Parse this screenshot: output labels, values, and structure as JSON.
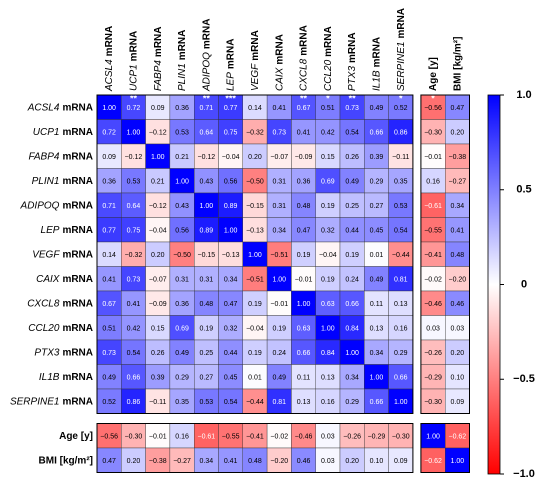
{
  "chart_data": {
    "type": "heatmap",
    "genes": [
      "ACSL4",
      "UCP1",
      "FABP4",
      "PLIN1",
      "ADIPOQ",
      "LEP",
      "VEGF",
      "CAIX",
      "CXCL8",
      "CCL20",
      "PTX3",
      "IL1B",
      "SERPINE1"
    ],
    "suffix": "mRNA",
    "extra_labels": [
      "Age [y]",
      "BMI [kg/m²]"
    ],
    "z": [
      [
        1,
        0.72,
        0.09,
        0.36,
        0.71,
        0.77,
        0.14,
        0.41,
        0.67,
        0.51,
        0.73,
        0.49,
        0.52,
        -0.56,
        0.47
      ],
      [
        0.72,
        1,
        -0.12,
        0.53,
        0.64,
        0.75,
        -0.32,
        0.73,
        0.41,
        0.42,
        0.54,
        0.66,
        0.86,
        -0.3,
        0.2
      ],
      [
        0.09,
        -0.12,
        1,
        0.21,
        -0.12,
        -0.04,
        0.2,
        -0.07,
        -0.09,
        0.15,
        0.26,
        0.39,
        -0.11,
        -0.01,
        -0.38
      ],
      [
        0.36,
        0.53,
        0.21,
        1,
        0.43,
        0.56,
        -0.5,
        0.31,
        0.36,
        0.69,
        0.49,
        0.29,
        0.35,
        0.16,
        -0.27
      ],
      [
        0.71,
        0.64,
        -0.12,
        0.43,
        1,
        0.89,
        -0.15,
        0.31,
        0.48,
        0.19,
        0.25,
        0.27,
        0.53,
        -0.61,
        0.34
      ],
      [
        0.77,
        0.75,
        -0.04,
        0.56,
        0.89,
        1,
        -0.13,
        0.34,
        0.47,
        0.32,
        0.44,
        0.45,
        0.54,
        -0.55,
        0.41
      ],
      [
        0.14,
        -0.32,
        0.2,
        -0.5,
        -0.15,
        -0.13,
        1,
        -0.51,
        0.19,
        -0.04,
        0.19,
        0.01,
        -0.44,
        -0.41,
        0.48
      ],
      [
        0.41,
        0.73,
        -0.07,
        0.31,
        0.31,
        0.34,
        -0.51,
        1,
        -0.01,
        0.19,
        0.24,
        0.49,
        0.81,
        -0.02,
        -0.2
      ],
      [
        0.67,
        0.41,
        -0.09,
        0.36,
        0.48,
        0.47,
        0.19,
        -0.01,
        1,
        0.63,
        0.66,
        0.11,
        0.13,
        -0.46,
        0.46
      ],
      [
        0.51,
        0.42,
        0.15,
        0.69,
        0.19,
        0.32,
        -0.04,
        0.19,
        0.63,
        1,
        0.84,
        0.13,
        0.16,
        0.03,
        0.03
      ],
      [
        0.73,
        0.54,
        0.26,
        0.49,
        0.25,
        0.44,
        0.19,
        0.24,
        0.66,
        0.84,
        1,
        0.34,
        0.29,
        -0.26,
        0.2
      ],
      [
        0.49,
        0.66,
        0.39,
        0.29,
        0.27,
        0.45,
        0.01,
        0.49,
        0.11,
        0.13,
        0.34,
        1,
        0.66,
        -0.29,
        0.1
      ],
      [
        0.52,
        0.86,
        -0.11,
        0.35,
        0.53,
        0.54,
        -0.44,
        0.81,
        0.13,
        0.16,
        0.29,
        0.66,
        1,
        -0.3,
        0.09
      ],
      [
        -0.56,
        -0.3,
        -0.01,
        0.16,
        -0.61,
        -0.55,
        -0.41,
        -0.02,
        -0.46,
        0.03,
        -0.26,
        -0.29,
        -0.3,
        1,
        -0.62
      ],
      [
        0.47,
        0.2,
        -0.38,
        -0.27,
        0.34,
        0.41,
        0.48,
        -0.2,
        0.46,
        0.03,
        0.2,
        0.1,
        0.09,
        -0.62,
        1
      ]
    ],
    "value_labels": [
      [
        "1.00",
        "0.72",
        "0.09",
        "0.36",
        "0.71",
        "0.77",
        "0.14",
        "0.41",
        "0.67",
        "0.51",
        "0.73",
        "0.49",
        "0.52",
        "−0.56",
        "0.47"
      ],
      [
        "0.72",
        "1.00",
        "−0.12",
        "0.53",
        "0.64",
        "0.75",
        "−0.32",
        "0.73",
        "0.41",
        "0.42",
        "0.54",
        "0.66",
        "0.86",
        "−0.30",
        "0.20"
      ],
      [
        "0.09",
        "−0.12",
        "1.00",
        "0.21",
        "−0.12",
        "−0.04",
        "0.20",
        "−0.07",
        "−0.09",
        "0.15",
        "0.26",
        "0.39",
        "−0.11",
        "−0.01",
        "−0.38"
      ],
      [
        "0.36",
        "0.53",
        "0.21",
        "1.00",
        "0.43",
        "0.56",
        "−0.50",
        "0.31",
        "0.36",
        "0.69",
        "0.49",
        "0.29",
        "0.35",
        "0.16",
        "−0.27"
      ],
      [
        "0.71",
        "0.64",
        "−0.12",
        "0.43",
        "1.00",
        "0.89",
        "−0.15",
        "0.31",
        "0.48",
        "0.19",
        "0.25",
        "0.27",
        "0.53",
        "−0.61",
        "0.34"
      ],
      [
        "0.77",
        "0.75",
        "−0.04",
        "0.56",
        "0.89",
        "1.00",
        "−0.13",
        "0.34",
        "0.47",
        "0.32",
        "0.44",
        "0.45",
        "0.54",
        "−0.55",
        "0.41"
      ],
      [
        "0.14",
        "−0.32",
        "0.20",
        "−0.50",
        "−0.15",
        "−0.13",
        "1.00",
        "−0.51",
        "0.19",
        "−0.04",
        "0.19",
        "0.01",
        "−0.44",
        "−0.41",
        "0.48"
      ],
      [
        "0.41",
        "0.73",
        "−0.07",
        "0.31",
        "0.31",
        "0.34",
        "−0.51",
        "1.00",
        "−0.01",
        "0.19",
        "0.24",
        "0.49",
        "0.81",
        "−0.02",
        "−0.20"
      ],
      [
        "0.67",
        "0.41",
        "−0.09",
        "0.36",
        "0.48",
        "0.47",
        "0.19",
        "−0.01",
        "1.00",
        "0.63",
        "0.66",
        "0.11",
        "0.13",
        "−0.46",
        "0.46"
      ],
      [
        "0.51",
        "0.42",
        "0.15",
        "0.69",
        "0.19",
        "0.32",
        "−0.04",
        "0.19",
        "0.63",
        "1.00",
        "0.84",
        "0.13",
        "0.16",
        "0.03",
        "0.03"
      ],
      [
        "0.73",
        "0.54",
        "0.26",
        "0.49",
        "0.25",
        "0.44",
        "0.19",
        "0.24",
        "0.66",
        "0.84",
        "1.00",
        "0.34",
        "0.29",
        "−0.26",
        "0.20"
      ],
      [
        "0.49",
        "0.66",
        "0.39",
        "0.29",
        "0.27",
        "0.45",
        "0.01",
        "0.49",
        "0.11",
        "0.13",
        "0.34",
        "1.00",
        "0.66",
        "−0.29",
        "0.10"
      ],
      [
        "0.52",
        "0.86",
        "−0.11",
        "0.35",
        "0.53",
        "0.54",
        "−0.44",
        "0.81",
        "0.13",
        "0.16",
        "0.29",
        "0.66",
        "1.00",
        "−0.30",
        "0.09"
      ],
      [
        "−0.56",
        "−0.30",
        "−0.01",
        "0.16",
        "−0.61",
        "−0.55",
        "−0.41",
        "−0.02",
        "−0.46",
        "0.03",
        "−0.26",
        "−0.29",
        "−0.30",
        "1.00",
        "−0.62"
      ],
      [
        "0.47",
        "0.20",
        "−0.38",
        "−0.27",
        "0.34",
        "0.41",
        "0.48",
        "−0.20",
        "0.46",
        "0.03",
        "0.20",
        "0.10",
        "0.09",
        "−0.62",
        "1.00"
      ]
    ],
    "significance_first_row": [
      null,
      "**",
      null,
      null,
      "**",
      "***",
      null,
      null,
      "**",
      "*",
      "**",
      null,
      "*",
      "*",
      null
    ],
    "zlim": [
      -1,
      1
    ],
    "colorscale": [
      "#ff0000",
      "#ffffff",
      "#0000ff"
    ],
    "colorbar_ticks": [
      {
        "value": 1,
        "label": "1.0"
      },
      0.5,
      0,
      {
        "value": -0.5,
        "label": "−0.5"
      },
      {
        "value": -1,
        "label": "−1.0"
      }
    ]
  }
}
